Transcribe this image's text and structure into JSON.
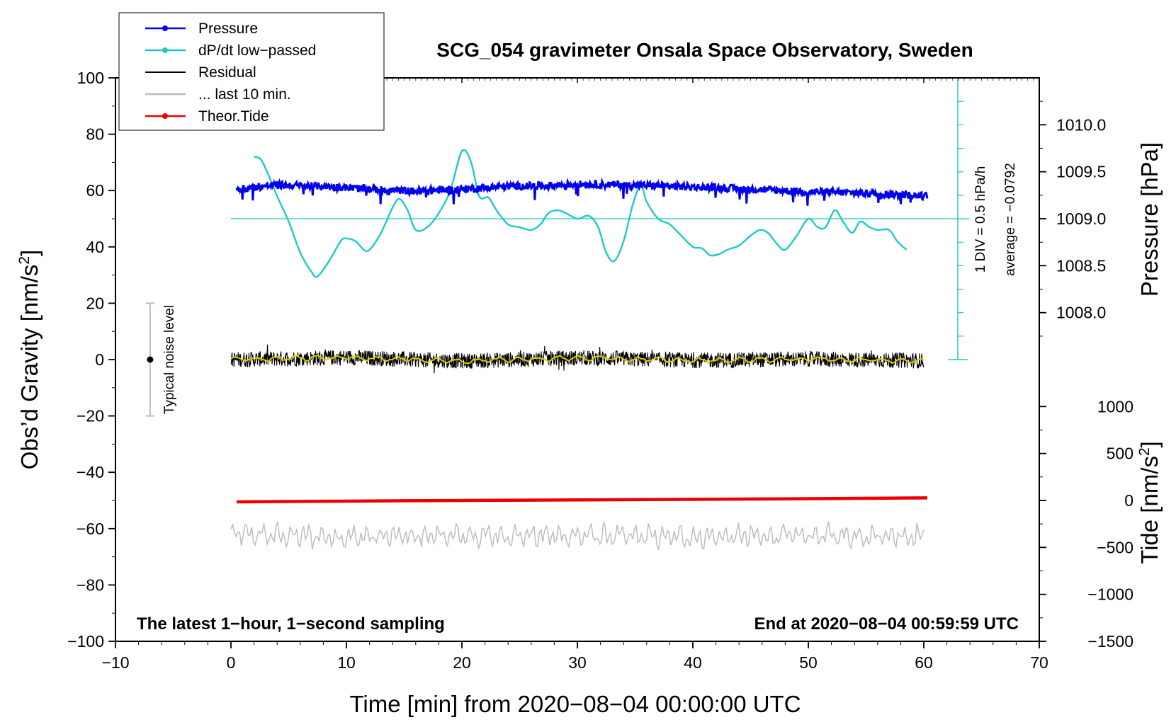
{
  "chart_data": {
    "type": "line",
    "title": "SCG_054 gravimeter Onsala Space Observatory, Sweden",
    "xlabel": "Time [min] from 2020−08−04 00:00:00 UTC",
    "ylabel_left": "Obs’d Gravity [nm/s",
    "ylabel_left_sup": "2",
    "ylabel_left_end": "]",
    "ylabel_right_pressure": "Pressure [hPa]",
    "ylabel_right_tide": "Tide [nm/s",
    "ylabel_right_tide_sup": "2",
    "ylabel_right_tide_end": "]",
    "xlim": [
      -10,
      70
    ],
    "ylim": [
      -100,
      100
    ],
    "x_ticks": [
      -10,
      0,
      10,
      20,
      30,
      40,
      50,
      60,
      70
    ],
    "x_tick_labels": [
      "−10",
      "0",
      "10",
      "20",
      "30",
      "40",
      "50",
      "60",
      "70"
    ],
    "y_ticks": [
      -100,
      -80,
      -60,
      -40,
      -20,
      0,
      20,
      40,
      60,
      80,
      100
    ],
    "y_tick_labels": [
      "−100",
      "−80",
      "−60",
      "−40",
      "−20",
      "0",
      "20",
      "40",
      "60",
      "80",
      "100"
    ],
    "pressure_axis": {
      "values": [
        1008.0,
        1008.5,
        1009.0,
        1009.5,
        1010.0
      ],
      "labels": [
        "1008.0",
        "1008.5",
        "1009.0",
        "1009.5",
        "1010.0"
      ],
      "g_at_1009": 50,
      "g_per_hpa": 33.3
    },
    "tide_axis": {
      "values": [
        -1500,
        -1000,
        -500,
        0,
        500,
        1000
      ],
      "labels": [
        "−1500",
        "−1000",
        "−500",
        "0",
        "500",
        "1000"
      ],
      "g_at_0": -50,
      "g_per_500": 16.67
    },
    "legend": [
      {
        "label": "Pressure",
        "color": "#0000ee",
        "marker": true
      },
      {
        "label": "dP/dt low−passed",
        "color": "#20c8c8",
        "marker": true
      },
      {
        "label": "Residual",
        "color": "#000000",
        "marker": false
      },
      {
        "label": "... last 10 min.",
        "color": "#bdbdbd",
        "marker": false
      },
      {
        "label": "Theor.Tide",
        "color": "#ee0000",
        "marker": true
      }
    ],
    "series": [
      {
        "name": "Pressure",
        "color": "#0000ee",
        "x": [
          0.5,
          4,
          8,
          12,
          16,
          20,
          24,
          28,
          30,
          34,
          38,
          42,
          46,
          50,
          54,
          58,
          60.3
        ],
        "y": [
          60.5,
          62,
          61.5,
          60.5,
          59.8,
          60.5,
          61.5,
          61.8,
          62.3,
          62,
          61.6,
          61,
          60.3,
          59.6,
          59.2,
          58.6,
          58
        ]
      },
      {
        "name": "dP/dt low−passed",
        "color": "#20c8c8",
        "x": [
          2,
          2.6,
          3.3,
          4,
          5,
          6,
          7,
          7.5,
          8.5,
          9.5,
          10,
          10.8,
          11.5,
          12,
          13,
          14,
          14.6,
          15.3,
          16,
          17,
          18,
          19,
          20,
          20.8,
          21.5,
          22.3,
          23,
          24,
          25,
          26,
          26.8,
          27.5,
          28.3,
          29,
          30,
          31,
          31.8,
          32.5,
          33.2,
          34,
          34.8,
          35.5,
          36,
          37,
          38,
          39,
          40,
          40.8,
          41.5,
          42.3,
          43,
          44,
          45,
          45.8,
          46.5,
          47.3,
          48,
          49,
          50,
          50.8,
          51.5,
          52.3,
          53,
          53.8,
          54.5,
          55.3,
          56,
          57,
          57.7,
          58.5
        ],
        "y": [
          72,
          71,
          65,
          58,
          49,
          38,
          31,
          29.5,
          35,
          42,
          43,
          42,
          39,
          39,
          45,
          54,
          57,
          53,
          46,
          47,
          52,
          60,
          74,
          70,
          58,
          57.5,
          53,
          48,
          47,
          46,
          48,
          52,
          53,
          52,
          50,
          51,
          47,
          38,
          35,
          42,
          55,
          62,
          56,
          50,
          48,
          44,
          40,
          39.5,
          37,
          37.5,
          39,
          40.5,
          44,
          46,
          45,
          41,
          39,
          44,
          50,
          47,
          47,
          53,
          49,
          45,
          49,
          47,
          46,
          46,
          42,
          39
        ]
      },
      {
        "name": "Residual",
        "color": "#000000",
        "x": [
          0,
          10,
          20,
          30,
          40,
          50,
          60
        ],
        "y": [
          0,
          0.8,
          -0.5,
          0.6,
          -0.3,
          0.2,
          -0.4
        ]
      },
      {
        "name": "... last 10 min.",
        "color": "#bdbdbd",
        "x": [
          0,
          10,
          20,
          30,
          40,
          50,
          60
        ],
        "y": [
          -62,
          -63,
          -62.5,
          -62.5,
          -63,
          -62.5,
          -62.5
        ]
      },
      {
        "name": "Theor.Tide",
        "color": "#ee0000",
        "x": [
          0.5,
          15,
          30,
          45,
          60.3
        ],
        "y": [
          -50.5,
          -50.1,
          -49.8,
          -49.5,
          -49.1
        ]
      }
    ],
    "dpdt_scale_label": "1 DIV = 0.5 hPa/h",
    "dpdt_average_label": "average = −0.0792",
    "dpdt_zero_line_y": 50,
    "noise_bar": {
      "x": -7,
      "y_low": -20,
      "y_high": 20,
      "label": "Typical noise level"
    },
    "annotation_left": "The latest 1−hour, 1−second sampling",
    "annotation_right": "End at 2020−08−04 00:59:59 UTC"
  }
}
